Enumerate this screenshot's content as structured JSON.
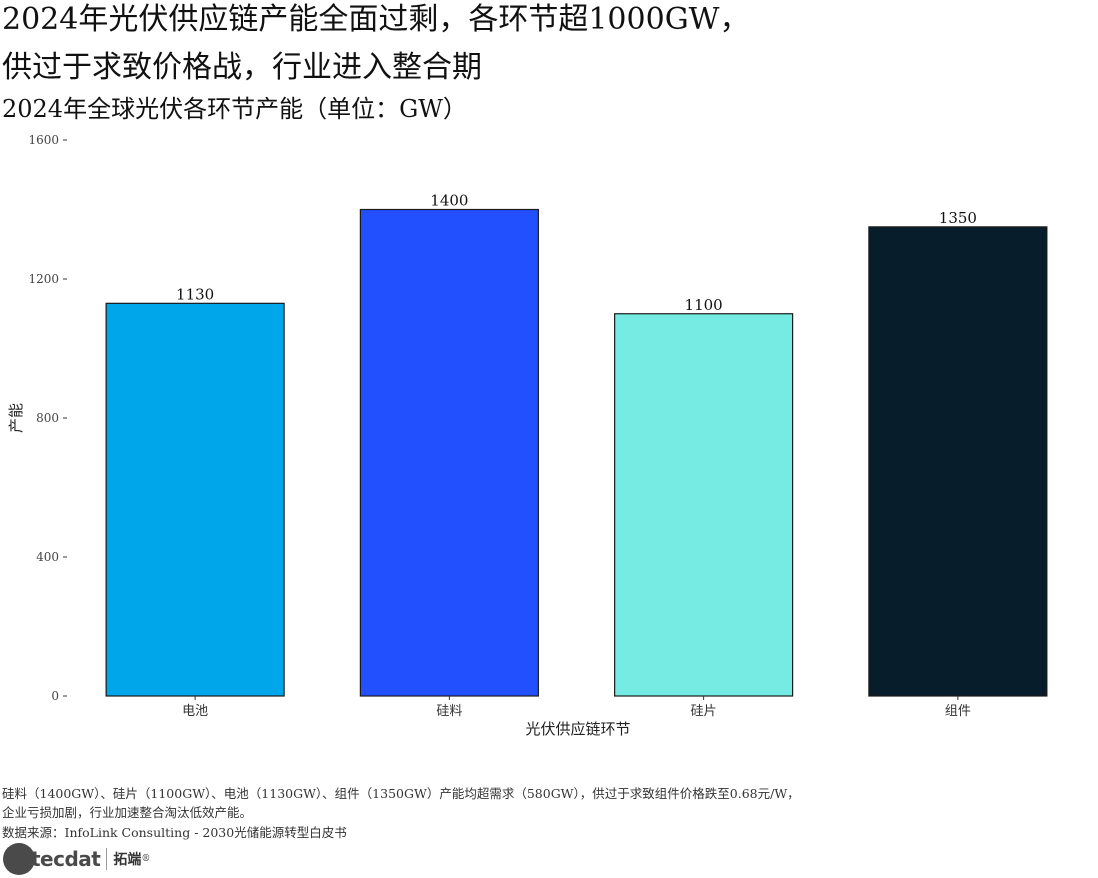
{
  "header": {
    "title_line1": "2024年光伏供应链产能全面过剩，各环节超1000GW，",
    "title_line2": "供过于求致价格战，行业进入整合期",
    "subtitle": "2024年全球光伏各环节产能（单位：GW）"
  },
  "chart_data": {
    "type": "bar",
    "categories": [
      "电池",
      "硅料",
      "硅片",
      "组件"
    ],
    "values": [
      1130,
      1400,
      1100,
      1350
    ],
    "colors": [
      "#00a6ea",
      "#2350ff",
      "#76ebe3",
      "#071d2b"
    ],
    "title": "",
    "xlabel": "光伏供应链环节",
    "ylabel": "产能",
    "ylim": [
      0,
      1600
    ],
    "yticks": [
      0,
      400,
      800,
      1200,
      1600
    ],
    "grid": false,
    "legend": "none"
  },
  "footer": {
    "caption_line1": "硅料（1400GW）、硅片（1100GW）、电池（1130GW）、组件（1350GW）产能均超需求（580GW），供过于求致组件价格跌至0.68元/W，",
    "caption_line2": "企业亏损加剧，行业加速整合淘汰低效产能。",
    "source": "数据来源：InfoLink Consulting - 2030光储能源转型白皮书"
  },
  "logo": {
    "brand_latin": "tecdat",
    "brand_cn": "拓端",
    "registered": "®"
  }
}
